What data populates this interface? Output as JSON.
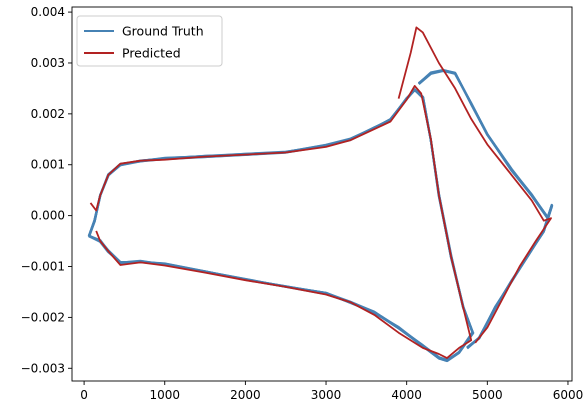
{
  "chart_data": {
    "type": "line",
    "title": "",
    "xlabel": "",
    "ylabel": "",
    "xlim": [
      -150,
      6050
    ],
    "ylim": [
      -0.00325,
      0.0041
    ],
    "xticks": [
      0,
      1000,
      2000,
      3000,
      4000,
      5000,
      6000
    ],
    "xtick_labels": [
      "0",
      "1000",
      "2000",
      "3000",
      "4000",
      "5000",
      "6000"
    ],
    "yticks": [
      -0.003,
      -0.002,
      -0.001,
      0.0,
      0.001,
      0.002,
      0.003,
      0.004
    ],
    "ytick_labels": [
      "−0.003",
      "−0.002",
      "−0.001",
      "0.000",
      "0.001",
      "0.002",
      "0.003",
      "0.004"
    ],
    "legend_position": "top-left",
    "grid": false,
    "series": [
      {
        "name": "Ground Truth",
        "color": "#4682b4",
        "loops": [
          {
            "upper": [
              [
                60,
                -0.0004
              ],
              [
                130,
                -0.0001
              ],
              [
                200,
                0.0004
              ],
              [
                300,
                0.0008
              ],
              [
                450,
                0.001
              ],
              [
                700,
                0.00108
              ],
              [
                1000,
                0.00112
              ],
              [
                1500,
                0.00116
              ],
              [
                2000,
                0.0012
              ],
              [
                2500,
                0.00125
              ],
              [
                3000,
                0.00138
              ],
              [
                3300,
                0.0015
              ],
              [
                3600,
                0.00172
              ],
              [
                3800,
                0.00188
              ],
              [
                4000,
                0.0023
              ],
              [
                4100,
                0.00248
              ],
              [
                4200,
                0.00232
              ],
              [
                4300,
                0.0015
              ],
              [
                4400,
                0.0004
              ],
              [
                4550,
                -0.0008
              ],
              [
                4700,
                -0.0018
              ],
              [
                4820,
                -0.0023
              ]
            ],
            "lower": [
              [
                60,
                -0.0004
              ],
              [
                200,
                -0.0005
              ],
              [
                300,
                -0.0007
              ],
              [
                450,
                -0.00093
              ],
              [
                700,
                -0.0009
              ],
              [
                1000,
                -0.00095
              ],
              [
                1500,
                -0.0011
              ],
              [
                2000,
                -0.00125
              ],
              [
                2500,
                -0.0014
              ],
              [
                3000,
                -0.00153
              ],
              [
                3300,
                -0.0017
              ],
              [
                3600,
                -0.0019
              ],
              [
                3900,
                -0.0022
              ],
              [
                4200,
                -0.00256
              ],
              [
                4400,
                -0.0028
              ],
              [
                4500,
                -0.00285
              ],
              [
                4650,
                -0.0027
              ],
              [
                4820,
                -0.0023
              ]
            ]
          },
          {
            "upper": [
              [
                4150,
                0.0026
              ],
              [
                4300,
                0.0028
              ],
              [
                4450,
                0.00285
              ],
              [
                4600,
                0.0028
              ],
              [
                4800,
                0.0022
              ],
              [
                5000,
                0.0016
              ],
              [
                5300,
                0.0009
              ],
              [
                5550,
                0.0004
              ],
              [
                5750,
                -5e-05
              ],
              [
                5800,
                0.0002
              ]
            ],
            "lower": [
              [
                4750,
                -0.0026
              ],
              [
                4900,
                -0.0024
              ],
              [
                5100,
                -0.0018
              ],
              [
                5300,
                -0.0013
              ],
              [
                5500,
                -0.0008
              ],
              [
                5700,
                -0.0003
              ],
              [
                5800,
                0.0002
              ]
            ]
          }
        ]
      },
      {
        "name": "Predicted",
        "color": "#b22222",
        "loops": [
          {
            "upper": [
              [
                80,
                0.00025
              ],
              [
                150,
                0.0001
              ],
              [
                200,
                0.0004
              ],
              [
                300,
                0.0008
              ],
              [
                450,
                0.00102
              ],
              [
                700,
                0.00108
              ],
              [
                1000,
                0.0011
              ],
              [
                1500,
                0.00116
              ],
              [
                2000,
                0.0012
              ],
              [
                2500,
                0.00124
              ],
              [
                3000,
                0.00135
              ],
              [
                3300,
                0.00148
              ],
              [
                3600,
                0.0017
              ],
              [
                3800,
                0.00185
              ],
              [
                4000,
                0.00228
              ],
              [
                4100,
                0.00255
              ],
              [
                4180,
                0.0024
              ],
              [
                4300,
                0.0015
              ],
              [
                4400,
                0.0004
              ],
              [
                4550,
                -0.0008
              ],
              [
                4700,
                -0.0018
              ],
              [
                4800,
                -0.00245
              ]
            ],
            "lower": [
              [
                150,
                -0.0003
              ],
              [
                200,
                -0.0005
              ],
              [
                300,
                -0.0007
              ],
              [
                450,
                -0.00097
              ],
              [
                700,
                -0.00092
              ],
              [
                1000,
                -0.00098
              ],
              [
                1500,
                -0.00112
              ],
              [
                2000,
                -0.00127
              ],
              [
                2500,
                -0.0014
              ],
              [
                3000,
                -0.00155
              ],
              [
                3300,
                -0.0017
              ],
              [
                3600,
                -0.00195
              ],
              [
                3900,
                -0.0023
              ],
              [
                4200,
                -0.0026
              ],
              [
                4400,
                -0.00272
              ],
              [
                4500,
                -0.0028
              ],
              [
                4650,
                -0.0026
              ],
              [
                4800,
                -0.00245
              ]
            ]
          },
          {
            "upper": [
              [
                3900,
                0.0023
              ],
              [
                4050,
                0.0032
              ],
              [
                4120,
                0.0037
              ],
              [
                4200,
                0.0036
              ],
              [
                4400,
                0.003
              ],
              [
                4600,
                0.0025
              ],
              [
                4800,
                0.0019
              ],
              [
                5000,
                0.0014
              ],
              [
                5300,
                0.0008
              ],
              [
                5550,
                0.0003
              ],
              [
                5700,
                -0.0001
              ],
              [
                5790,
                -5e-05
              ]
            ],
            "lower": [
              [
                4850,
                -0.0025
              ],
              [
                5000,
                -0.0022
              ],
              [
                5200,
                -0.0016
              ],
              [
                5400,
                -0.001
              ],
              [
                5600,
                -0.0005
              ],
              [
                5790,
                -5e-05
              ]
            ]
          }
        ]
      }
    ]
  }
}
